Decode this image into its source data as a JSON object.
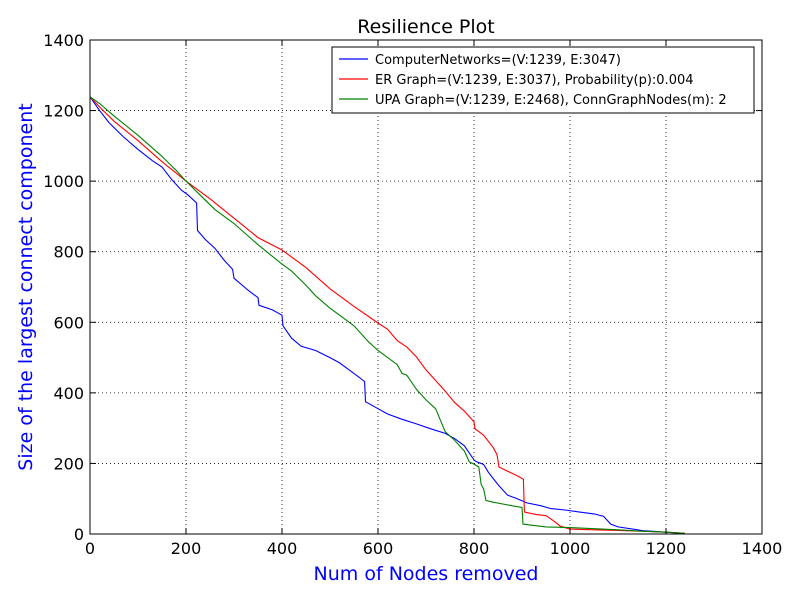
{
  "chart_data": {
    "type": "line",
    "title": "Resilience Plot",
    "xlabel": "Num of Nodes removed",
    "ylabel": "Size of the largest connect component",
    "xlim": [
      0,
      1400
    ],
    "ylim": [
      0,
      1400
    ],
    "xticks": [
      "0",
      "200",
      "400",
      "600",
      "800",
      "1000",
      "1200",
      "1400"
    ],
    "yticks": [
      "0",
      "200",
      "400",
      "600",
      "800",
      "1000",
      "1200",
      "1400"
    ],
    "grid": true,
    "legend_position": "top-right",
    "series": [
      {
        "name": "ComputerNetworks=(V:1239, E:3047)",
        "color": "#0000ff",
        "points": [
          [
            0,
            1239
          ],
          [
            20,
            1200
          ],
          [
            40,
            1165
          ],
          [
            70,
            1125
          ],
          [
            100,
            1090
          ],
          [
            130,
            1058
          ],
          [
            150,
            1040
          ],
          [
            170,
            1005
          ],
          [
            190,
            975
          ],
          [
            205,
            960
          ],
          [
            222,
            938
          ],
          [
            224,
            860
          ],
          [
            240,
            835
          ],
          [
            260,
            810
          ],
          [
            280,
            775
          ],
          [
            297,
            750
          ],
          [
            300,
            725
          ],
          [
            330,
            690
          ],
          [
            350,
            670
          ],
          [
            352,
            648
          ],
          [
            380,
            635
          ],
          [
            400,
            620
          ],
          [
            402,
            590
          ],
          [
            420,
            555
          ],
          [
            440,
            532
          ],
          [
            470,
            520
          ],
          [
            500,
            500
          ],
          [
            520,
            485
          ],
          [
            540,
            465
          ],
          [
            560,
            445
          ],
          [
            572,
            432
          ],
          [
            574,
            375
          ],
          [
            600,
            355
          ],
          [
            620,
            340
          ],
          [
            650,
            325
          ],
          [
            680,
            312
          ],
          [
            710,
            298
          ],
          [
            740,
            285
          ],
          [
            760,
            270
          ],
          [
            780,
            250
          ],
          [
            800,
            210
          ],
          [
            805,
            205
          ],
          [
            820,
            197
          ],
          [
            830,
            175
          ],
          [
            850,
            140
          ],
          [
            870,
            110
          ],
          [
            890,
            100
          ],
          [
            910,
            88
          ],
          [
            940,
            80
          ],
          [
            960,
            72
          ],
          [
            990,
            68
          ],
          [
            1020,
            62
          ],
          [
            1050,
            57
          ],
          [
            1070,
            50
          ],
          [
            1085,
            28
          ],
          [
            1100,
            20
          ],
          [
            1150,
            10
          ],
          [
            1200,
            5
          ],
          [
            1239,
            2
          ]
        ]
      },
      {
        "name": "ER Graph=(V:1239, E:3037), Probability(p):0.004",
        "color": "#ff0000",
        "points": [
          [
            0,
            1239
          ],
          [
            20,
            1210
          ],
          [
            50,
            1170
          ],
          [
            100,
            1115
          ],
          [
            150,
            1055
          ],
          [
            200,
            1000
          ],
          [
            250,
            950
          ],
          [
            300,
            895
          ],
          [
            350,
            840
          ],
          [
            400,
            805
          ],
          [
            450,
            755
          ],
          [
            500,
            695
          ],
          [
            550,
            645
          ],
          [
            600,
            598
          ],
          [
            620,
            580
          ],
          [
            640,
            548
          ],
          [
            660,
            530
          ],
          [
            680,
            502
          ],
          [
            700,
            465
          ],
          [
            720,
            435
          ],
          [
            740,
            405
          ],
          [
            760,
            372
          ],
          [
            780,
            348
          ],
          [
            800,
            318
          ],
          [
            802,
            298
          ],
          [
            820,
            280
          ],
          [
            840,
            245
          ],
          [
            848,
            225
          ],
          [
            852,
            190
          ],
          [
            870,
            178
          ],
          [
            890,
            165
          ],
          [
            903,
            155
          ],
          [
            905,
            62
          ],
          [
            930,
            55
          ],
          [
            950,
            52
          ],
          [
            965,
            38
          ],
          [
            980,
            22
          ],
          [
            1000,
            14
          ],
          [
            1050,
            12
          ],
          [
            1100,
            10
          ],
          [
            1150,
            8
          ],
          [
            1200,
            5
          ],
          [
            1239,
            2
          ]
        ]
      },
      {
        "name": "UPA Graph=(V:1239, E:2468), ConnGraphNodes(m): 2",
        "color": "#008000",
        "points": [
          [
            0,
            1239
          ],
          [
            20,
            1220
          ],
          [
            50,
            1185
          ],
          [
            100,
            1130
          ],
          [
            150,
            1070
          ],
          [
            180,
            1030
          ],
          [
            200,
            1000
          ],
          [
            230,
            960
          ],
          [
            260,
            920
          ],
          [
            300,
            880
          ],
          [
            350,
            820
          ],
          [
            400,
            765
          ],
          [
            420,
            745
          ],
          [
            450,
            705
          ],
          [
            470,
            675
          ],
          [
            500,
            640
          ],
          [
            550,
            590
          ],
          [
            580,
            545
          ],
          [
            600,
            520
          ],
          [
            640,
            480
          ],
          [
            650,
            455
          ],
          [
            660,
            450
          ],
          [
            680,
            410
          ],
          [
            700,
            380
          ],
          [
            720,
            355
          ],
          [
            740,
            290
          ],
          [
            760,
            265
          ],
          [
            780,
            235
          ],
          [
            790,
            205
          ],
          [
            800,
            198
          ],
          [
            810,
            190
          ],
          [
            815,
            140
          ],
          [
            820,
            128
          ],
          [
            825,
            95
          ],
          [
            840,
            90
          ],
          [
            860,
            85
          ],
          [
            880,
            80
          ],
          [
            900,
            75
          ],
          [
            902,
            28
          ],
          [
            920,
            25
          ],
          [
            950,
            20
          ],
          [
            1000,
            18
          ],
          [
            1050,
            15
          ],
          [
            1100,
            12
          ],
          [
            1150,
            8
          ],
          [
            1200,
            5
          ],
          [
            1239,
            2
          ]
        ]
      }
    ]
  }
}
